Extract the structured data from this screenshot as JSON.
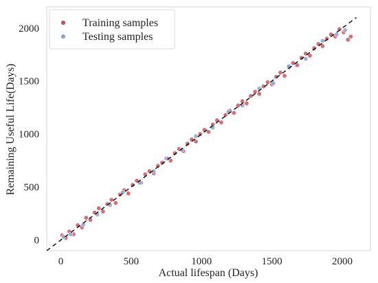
{
  "chart_data": {
    "type": "scatter",
    "title": "",
    "xlabel": "Actual lifespan (Days)",
    "ylabel": "Remaining Useful Life(Days)",
    "xlim": [
      -100,
      2200
    ],
    "ylim": [
      -100,
      2200
    ],
    "xticks": [
      0,
      500,
      1000,
      1500,
      2000
    ],
    "yticks": [
      0,
      500,
      1000,
      1500,
      2000
    ],
    "grid": false,
    "legend": {
      "placement": "top-left",
      "entries": [
        "Training samples",
        "Testing samples"
      ]
    },
    "reference_line": {
      "style": "dashed",
      "x": [
        -100,
        2100
      ],
      "y": [
        -100,
        2100
      ],
      "color": "#000000"
    },
    "series": [
      {
        "name": "Training samples",
        "color": "#c8505c",
        "points": [
          [
            10,
            45
          ],
          [
            35,
            20
          ],
          [
            60,
            80
          ],
          [
            90,
            55
          ],
          [
            120,
            140
          ],
          [
            150,
            120
          ],
          [
            180,
            210
          ],
          [
            210,
            190
          ],
          [
            240,
            260
          ],
          [
            270,
            300
          ],
          [
            300,
            270
          ],
          [
            330,
            340
          ],
          [
            360,
            380
          ],
          [
            390,
            350
          ],
          [
            420,
            430
          ],
          [
            450,
            470
          ],
          [
            480,
            440
          ],
          [
            510,
            520
          ],
          [
            540,
            560
          ],
          [
            570,
            540
          ],
          [
            600,
            620
          ],
          [
            630,
            650
          ],
          [
            660,
            630
          ],
          [
            690,
            700
          ],
          [
            720,
            730
          ],
          [
            750,
            770
          ],
          [
            780,
            750
          ],
          [
            810,
            820
          ],
          [
            840,
            860
          ],
          [
            870,
            840
          ],
          [
            900,
            910
          ],
          [
            930,
            950
          ],
          [
            960,
            930
          ],
          [
            990,
            1000
          ],
          [
            1020,
            1040
          ],
          [
            1050,
            1020
          ],
          [
            1080,
            1090
          ],
          [
            1110,
            1130
          ],
          [
            1140,
            1110
          ],
          [
            1170,
            1180
          ],
          [
            1200,
            1220
          ],
          [
            1230,
            1200
          ],
          [
            1260,
            1270
          ],
          [
            1290,
            1310
          ],
          [
            1320,
            1290
          ],
          [
            1350,
            1360
          ],
          [
            1380,
            1400
          ],
          [
            1410,
            1380
          ],
          [
            1440,
            1450
          ],
          [
            1470,
            1490
          ],
          [
            1500,
            1470
          ],
          [
            1530,
            1540
          ],
          [
            1560,
            1580
          ],
          [
            1590,
            1550
          ],
          [
            1620,
            1630
          ],
          [
            1650,
            1670
          ],
          [
            1680,
            1650
          ],
          [
            1710,
            1720
          ],
          [
            1740,
            1760
          ],
          [
            1770,
            1740
          ],
          [
            1800,
            1810
          ],
          [
            1830,
            1850
          ],
          [
            1860,
            1830
          ],
          [
            1890,
            1900
          ],
          [
            1920,
            1940
          ],
          [
            1950,
            1920
          ],
          [
            1980,
            1990
          ],
          [
            2010,
            1960
          ],
          [
            2040,
            1890
          ],
          [
            2060,
            1920
          ]
        ]
      },
      {
        "name": "Testing samples",
        "color": "#8ea6d4",
        "points": [
          [
            20,
            30
          ],
          [
            70,
            55
          ],
          [
            160,
            145
          ],
          [
            260,
            240
          ],
          [
            350,
            330
          ],
          [
            440,
            450
          ],
          [
            560,
            540
          ],
          [
            660,
            650
          ],
          [
            760,
            770
          ],
          [
            860,
            850
          ],
          [
            960,
            980
          ],
          [
            1080,
            1060
          ],
          [
            1190,
            1210
          ],
          [
            1290,
            1270
          ],
          [
            1410,
            1430
          ],
          [
            1510,
            1480
          ],
          [
            1620,
            1640
          ],
          [
            1740,
            1710
          ],
          [
            1860,
            1880
          ],
          [
            1960,
            1940
          ],
          [
            2020,
            1980
          ]
        ]
      }
    ]
  }
}
